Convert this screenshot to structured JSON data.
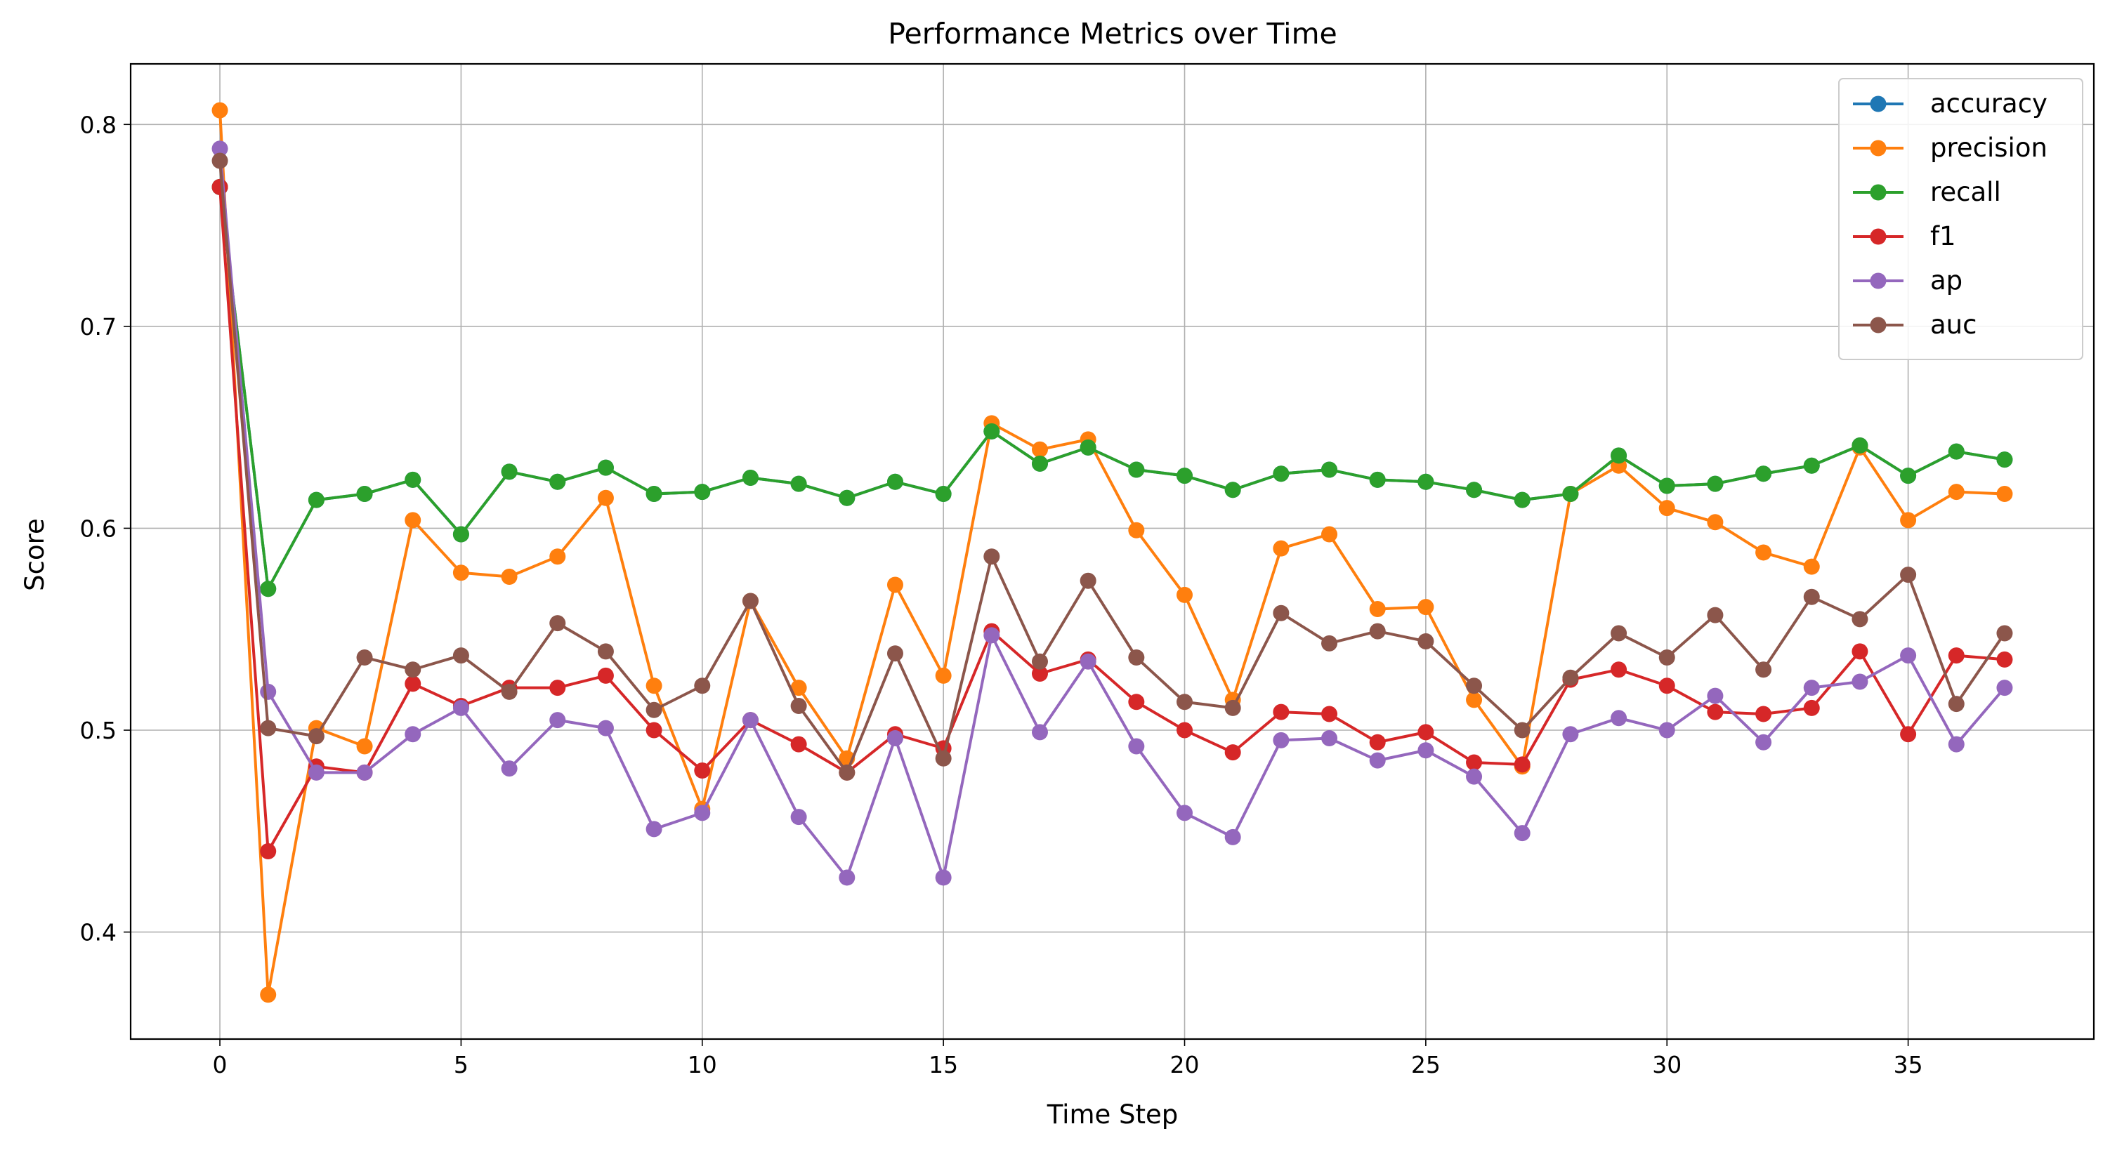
{
  "chart_data": {
    "type": "line",
    "title": "Performance Metrics over Time",
    "xlabel": "Time Step",
    "ylabel": "Score",
    "xlim": [
      -1.85,
      38.85
    ],
    "ylim": [
      0.347,
      0.83
    ],
    "xticks": [
      0,
      5,
      10,
      15,
      20,
      25,
      30,
      35
    ],
    "yticks": [
      0.4,
      0.5,
      0.6,
      0.7,
      0.8
    ],
    "xtick_labels": [
      "0",
      "5",
      "10",
      "15",
      "20",
      "25",
      "30",
      "35"
    ],
    "ytick_labels": [
      "0.4",
      "0.5",
      "0.6",
      "0.7",
      "0.8"
    ],
    "grid": true,
    "legend_position": "top-right",
    "x": [
      0,
      1,
      2,
      3,
      4,
      5,
      6,
      7,
      8,
      9,
      10,
      11,
      12,
      13,
      14,
      15,
      16,
      17,
      18,
      19,
      20,
      21,
      22,
      23,
      24,
      25,
      26,
      27,
      28,
      29,
      30,
      31,
      32,
      33,
      34,
      35,
      36,
      37
    ],
    "series": [
      {
        "name": "accuracy",
        "color": "#1f77b4",
        "values": [
          0.769,
          0.57,
          0.614,
          0.617,
          0.624,
          0.597,
          0.628,
          0.623,
          0.63,
          0.617,
          0.618,
          0.625,
          0.622,
          0.615,
          0.623,
          0.617,
          0.648,
          0.632,
          0.64,
          0.629,
          0.626,
          0.619,
          0.627,
          0.629,
          0.624,
          0.623,
          0.619,
          0.614,
          0.617,
          0.636,
          0.621,
          0.622,
          0.627,
          0.631,
          0.641,
          0.626,
          0.638,
          0.634
        ]
      },
      {
        "name": "precision",
        "color": "#ff7f0e",
        "values": [
          0.807,
          0.369,
          0.501,
          0.492,
          0.604,
          0.578,
          0.576,
          0.586,
          0.615,
          0.522,
          0.461,
          0.564,
          0.521,
          0.486,
          0.572,
          0.527,
          0.652,
          0.639,
          0.644,
          0.599,
          0.567,
          0.515,
          0.59,
          0.597,
          0.56,
          0.561,
          0.515,
          0.482,
          0.617,
          0.631,
          0.61,
          0.603,
          0.588,
          0.581,
          0.64,
          0.604,
          0.618,
          0.617
        ]
      },
      {
        "name": "recall",
        "color": "#2ca02c",
        "values": [
          0.769,
          0.57,
          0.614,
          0.617,
          0.624,
          0.597,
          0.628,
          0.623,
          0.63,
          0.617,
          0.618,
          0.625,
          0.622,
          0.615,
          0.623,
          0.617,
          0.648,
          0.632,
          0.64,
          0.629,
          0.626,
          0.619,
          0.627,
          0.629,
          0.624,
          0.623,
          0.619,
          0.614,
          0.617,
          0.636,
          0.621,
          0.622,
          0.627,
          0.631,
          0.641,
          0.626,
          0.638,
          0.634
        ]
      },
      {
        "name": "f1",
        "color": "#d62728",
        "values": [
          0.769,
          0.44,
          0.482,
          0.479,
          0.523,
          0.512,
          0.521,
          0.521,
          0.527,
          0.5,
          0.48,
          0.505,
          0.493,
          0.479,
          0.498,
          0.491,
          0.549,
          0.528,
          0.535,
          0.514,
          0.5,
          0.489,
          0.509,
          0.508,
          0.494,
          0.499,
          0.484,
          0.483,
          0.525,
          0.53,
          0.522,
          0.509,
          0.508,
          0.511,
          0.539,
          0.498,
          0.537,
          0.535
        ]
      },
      {
        "name": "ap",
        "color": "#9467bd",
        "values": [
          0.788,
          0.519,
          0.479,
          0.479,
          0.498,
          0.511,
          0.481,
          0.505,
          0.501,
          0.451,
          0.459,
          0.505,
          0.457,
          0.427,
          0.496,
          0.427,
          0.547,
          0.499,
          0.534,
          0.492,
          0.459,
          0.447,
          0.495,
          0.496,
          0.485,
          0.49,
          0.477,
          0.449,
          0.498,
          0.506,
          0.5,
          0.517,
          0.494,
          0.521,
          0.524,
          0.537,
          0.493,
          0.521
        ]
      },
      {
        "name": "auc",
        "color": "#8c564b",
        "values": [
          0.782,
          0.501,
          0.497,
          0.536,
          0.53,
          0.537,
          0.519,
          0.553,
          0.539,
          0.51,
          0.522,
          0.564,
          0.512,
          0.479,
          0.538,
          0.486,
          0.586,
          0.534,
          0.574,
          0.536,
          0.514,
          0.511,
          0.558,
          0.543,
          0.549,
          0.544,
          0.522,
          0.5,
          0.526,
          0.548,
          0.536,
          0.557,
          0.53,
          0.566,
          0.555,
          0.577,
          0.513,
          0.548
        ]
      }
    ]
  }
}
